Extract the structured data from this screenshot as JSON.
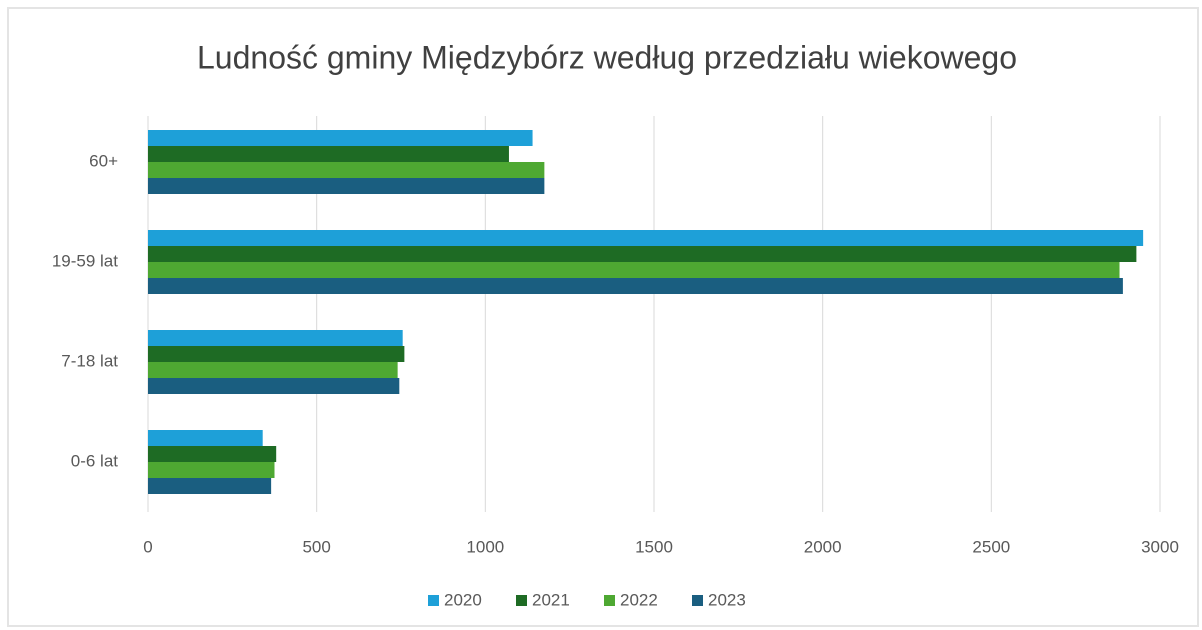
{
  "chart_data": {
    "type": "barh",
    "title": "Ludność gminy Międzybórz według przedziału wiekowego",
    "categories": [
      "60+",
      "19-59 lat",
      "7-18 lat",
      "0-6 lat"
    ],
    "series": [
      {
        "name": "2020",
        "color": "#1ea0d8",
        "values": [
          1140,
          2950,
          755,
          340
        ]
      },
      {
        "name": "2021",
        "color": "#1e6b24",
        "values": [
          1070,
          2930,
          760,
          380
        ]
      },
      {
        "name": "2022",
        "color": "#4ea832",
        "values": [
          1175,
          2880,
          740,
          375
        ]
      },
      {
        "name": "2023",
        "color": "#1a5e80",
        "values": [
          1175,
          2890,
          745,
          365
        ]
      }
    ],
    "xlim": [
      0,
      3000
    ],
    "xticks": [
      0,
      500,
      1000,
      1500,
      2000,
      2500,
      3000
    ],
    "grid": true,
    "legend": "bottom"
  }
}
